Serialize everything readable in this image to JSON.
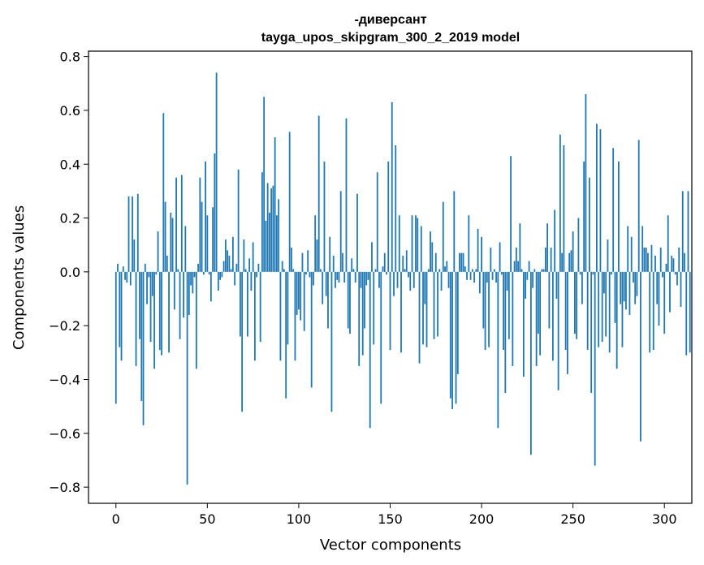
{
  "chart_data": {
    "type": "bar",
    "title": "-диверсант",
    "subtitle": "tayga_upos_skipgram_300_2_2019 model",
    "xlabel": "Vector components",
    "ylabel": "Components values",
    "xlim": [
      -15,
      315
    ],
    "ylim": [
      -0.86,
      0.82
    ],
    "x_ticks": [
      0,
      50,
      100,
      150,
      200,
      250,
      300
    ],
    "y_ticks": [
      -0.8,
      -0.6,
      -0.4,
      -0.2,
      0.0,
      0.2,
      0.4,
      0.6,
      0.8
    ],
    "x_tick_labels": [
      "0",
      "50",
      "100",
      "150",
      "200",
      "250",
      "300"
    ],
    "y_tick_labels": [
      "−0.8",
      "−0.6",
      "−0.4",
      "−0.2",
      "0.0",
      "0.2",
      "0.4",
      "0.6",
      "0.8"
    ],
    "bar_color": "#1f77b4",
    "grid": false,
    "series": [
      {
        "values": [
          -0.49,
          0.03,
          -0.28,
          -0.33,
          0.02,
          -0.03,
          -0.04,
          0.28,
          -0.05,
          0.28,
          0.12,
          -0.35,
          0.29,
          -0.25,
          -0.48,
          -0.57,
          0.03,
          -0.12,
          -0.02,
          -0.26,
          -0.09,
          -0.36,
          -0.01,
          0.15,
          -0.29,
          -0.31,
          0.59,
          0.26,
          0.06,
          -0.3,
          0.22,
          0.2,
          -0.14,
          0.35,
          0.01,
          -0.25,
          0.36,
          -0.17,
          0.17,
          -0.79,
          -0.16,
          -0.05,
          -0.08,
          -0.02,
          -0.36,
          0.03,
          0.35,
          0.26,
          -0.01,
          0.41,
          0.21,
          -0.01,
          -0.11,
          0.24,
          0.44,
          0.74,
          -0.07,
          -0.03,
          -0.02,
          0.04,
          0.12,
          0.08,
          0.06,
          0.01,
          0.13,
          -0.05,
          0.03,
          0.38,
          -0.24,
          -0.52,
          0.12,
          0.01,
          -0.24,
          0.05,
          -0.07,
          0.11,
          -0.33,
          -0.02,
          0.03,
          -0.26,
          0.37,
          0.65,
          0.19,
          0.33,
          0.22,
          0.31,
          0.32,
          0.5,
          0.21,
          0.27,
          -0.33,
          0.04,
          0.01,
          -0.47,
          -0.27,
          0.52,
          0.09,
          0.01,
          -0.33,
          -0.16,
          -0.14,
          -0.18,
          0.07,
          -0.22,
          -0.01,
          0.08,
          -0.02,
          -0.43,
          -0.05,
          0.21,
          0.12,
          0.58,
          0.01,
          -0.12,
          0.41,
          -0.09,
          -0.21,
          0.13,
          -0.52,
          0.06,
          -0.06,
          -0.03,
          -0.04,
          0.3,
          0.07,
          -0.04,
          0.57,
          -0.21,
          -0.23,
          0.05,
          0.01,
          -0.04,
          0.29,
          -0.35,
          -0.06,
          -0.31,
          -0.21,
          -0.05,
          -0.03,
          -0.58,
          0.11,
          -0.27,
          0.01,
          0.37,
          -0.06,
          -0.49,
          0.02,
          0.07,
          -0.01,
          0.41,
          -0.29,
          0.63,
          -0.09,
          0.47,
          -0.06,
          0.21,
          -0.3,
          0.06,
          0.01,
          0.08,
          -0.02,
          -0.07,
          0.21,
          -0.06,
          0.21,
          0.2,
          -0.34,
          0.17,
          -0.27,
          -0.12,
          -0.28,
          0.01,
          0.15,
          0.11,
          -0.25,
          0.07,
          -0.24,
          0.01,
          -0.07,
          0.26,
          0.02,
          0.04,
          -0.06,
          -0.47,
          -0.51,
          0.3,
          -0.49,
          -0.38,
          0.07,
          0.07,
          0.07,
          0.02,
          -0.03,
          0.21,
          -0.03,
          0.01,
          -0.04,
          0.01,
          0.16,
          -0.08,
          0.13,
          -0.21,
          -0.29,
          -0.04,
          -0.28,
          0.09,
          -0.03,
          0.01,
          -0.04,
          -0.58,
          0.11,
          -0.01,
          -0.29,
          -0.45,
          -0.07,
          -0.25,
          0.43,
          -0.35,
          0.04,
          0.09,
          0.04,
          0.18,
          0.01,
          -0.39,
          -0.1,
          -0.03,
          0.04,
          -0.68,
          -0.06,
          0.01,
          -0.35,
          -0.23,
          -0.31,
          0.01,
          0.01,
          0.09,
          0.18,
          -0.21,
          0.09,
          -0.33,
          0.23,
          -0.1,
          -0.44,
          0.51,
          0.07,
          0.47,
          -0.29,
          -0.38,
          0.07,
          0.08,
          0.15,
          -0.23,
          -0.25,
          0.2,
          -0.01,
          -0.12,
          0.41,
          0.66,
          -0.29,
          0.35,
          -0.45,
          -0.01,
          -0.72,
          0.55,
          -0.28,
          0.53,
          -0.26,
          -0.08,
          -0.24,
          0.12,
          -0.3,
          -0.01,
          0.46,
          -0.19,
          -0.36,
          0.41,
          -0.12,
          -0.28,
          -0.11,
          -0.14,
          0.17,
          -0.16,
          0.13,
          -0.04,
          -0.12,
          -0.09,
          0.49,
          -0.63,
          0.17,
          0.09,
          0.09,
          0.07,
          -0.3,
          0.1,
          -0.29,
          0.06,
          -0.12,
          -0.2,
          0.09,
          -0.02,
          -0.23,
          0.03,
          0.21,
          -0.15,
          0.06,
          0.05,
          -0.01,
          -0.05,
          0.09,
          -0.13,
          0.3,
          0.07,
          -0.31,
          0.3,
          -0.3
        ]
      }
    ]
  }
}
